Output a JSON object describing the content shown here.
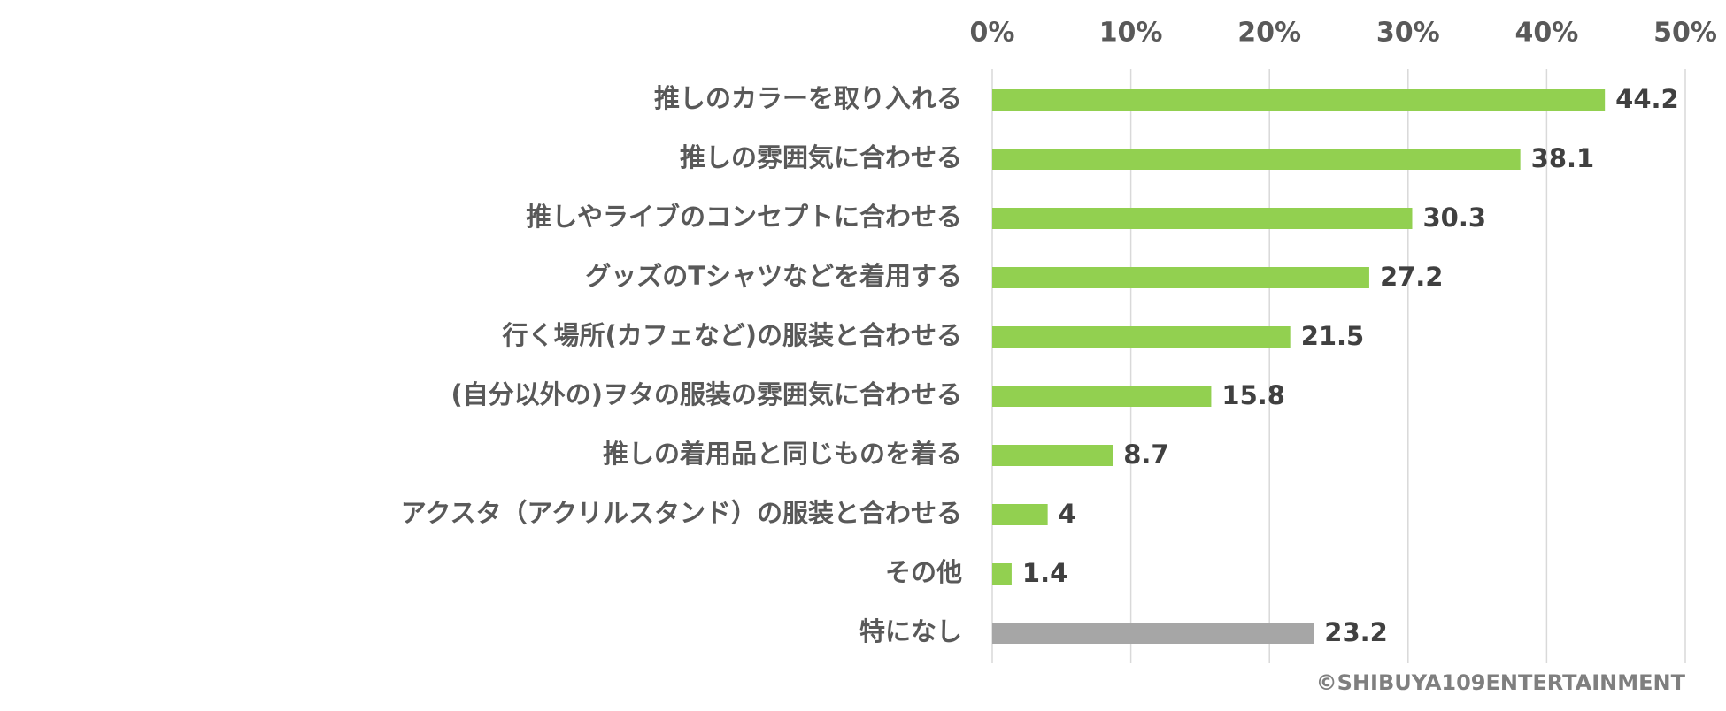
{
  "chart_data": {
    "type": "bar",
    "orientation": "horizontal",
    "categories": [
      "推しのカラーを取り入れる",
      "推しの雰囲気に合わせる",
      "推しやライブのコンセプトに合わせる",
      "グッズのTシャツなどを着用する",
      "行く場所(カフェなど)の服装と合わせる",
      "(自分以外の)ヲタの服装の雰囲気に合わせる",
      "推しの着用品と同じものを着る",
      "アクスタ（アクリルスタンド）の服装と合わせる",
      "その他",
      "特になし"
    ],
    "values": [
      44.2,
      38.1,
      30.3,
      27.2,
      21.5,
      15.8,
      8.7,
      4,
      1.4,
      23.2
    ],
    "value_labels": [
      "44.2",
      "38.1",
      "30.3",
      "27.2",
      "21.5",
      "15.8",
      "8.7",
      "4",
      "1.4",
      "23.2"
    ],
    "bar_colors": [
      "#92d050",
      "#92d050",
      "#92d050",
      "#92d050",
      "#92d050",
      "#92d050",
      "#92d050",
      "#92d050",
      "#92d050",
      "#a6a6a6"
    ],
    "xlim": [
      0,
      50
    ],
    "x_ticks": [
      0,
      10,
      20,
      30,
      40,
      50
    ],
    "x_tick_labels": [
      "0%",
      "10%",
      "20%",
      "30%",
      "40%",
      "50%"
    ],
    "x_axis_position": "top",
    "grid": true,
    "legend": "none",
    "title": "",
    "xlabel": "",
    "ylabel": ""
  },
  "copyright": "©SHIBUYA109ENTERTAINMENT"
}
